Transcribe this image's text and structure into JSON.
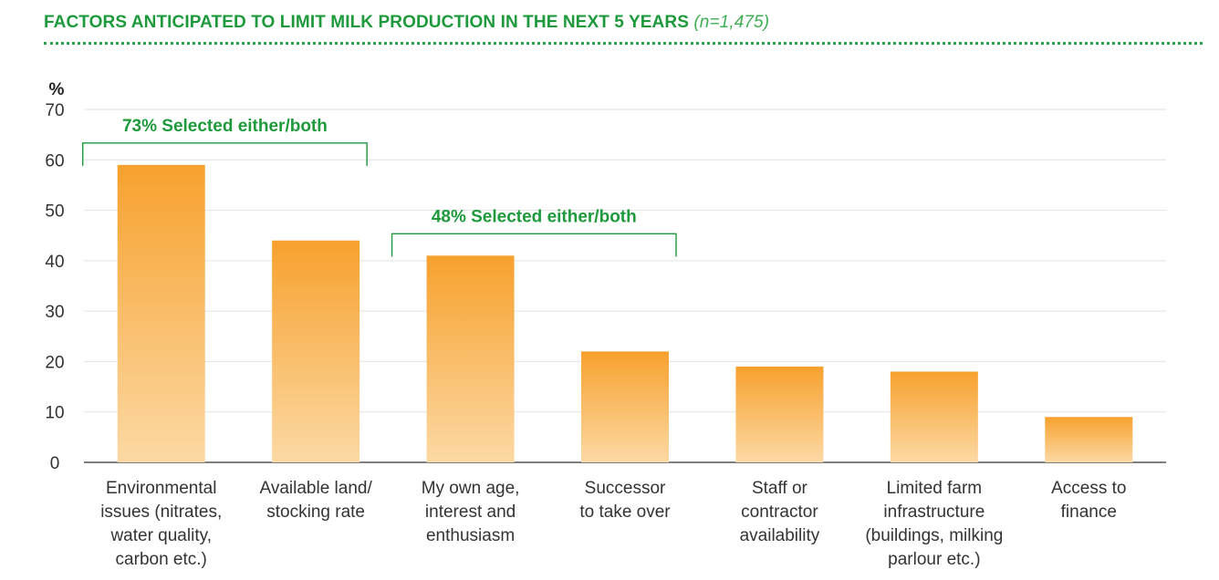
{
  "header": {
    "title": "FACTORS ANTICIPATED TO LIMIT MILK PRODUCTION IN THE NEXT 5 YEARS",
    "sample": "(n=1,475)"
  },
  "colors": {
    "accent": "#1e9a3c",
    "bar_top": "#f7a12e",
    "bar_bottom": "#fcd9a4",
    "grid": "#e2e2e2"
  },
  "chart_data": {
    "type": "bar",
    "title": "FACTORS ANTICIPATED TO LIMIT MILK PRODUCTION IN THE NEXT 5 YEARS",
    "ylabel": "%",
    "ylim": [
      0,
      70
    ],
    "yticks": [
      "0",
      "10",
      "20",
      "30",
      "40",
      "50",
      "60",
      "70"
    ],
    "grid": true,
    "categories": [
      [
        "Environmental",
        "issues (nitrates,",
        "water quality,",
        "carbon etc.)"
      ],
      [
        "Available land/",
        "stocking rate"
      ],
      [
        "My own age,",
        "interest and",
        "enthusiasm"
      ],
      [
        "Successor",
        "to take over"
      ],
      [
        "Staff or",
        "contractor",
        "availability"
      ],
      [
        "Limited farm",
        "infrastructure",
        "(buildings, milking",
        "parlour etc.)"
      ],
      [
        "Access to",
        "finance"
      ]
    ],
    "values": [
      59,
      44,
      41,
      22,
      19,
      18,
      9
    ],
    "annotations": [
      {
        "label": "73% Selected either/both",
        "from": 0,
        "to": 1
      },
      {
        "label": "48% Selected either/both",
        "from": 2,
        "to": 3
      }
    ]
  }
}
